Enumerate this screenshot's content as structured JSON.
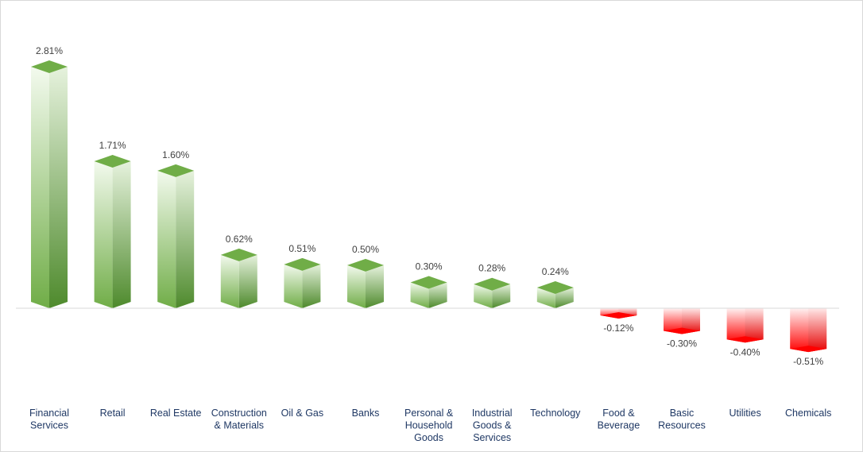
{
  "chart_data": {
    "type": "bar",
    "categories": [
      [
        "Financial",
        "Services"
      ],
      [
        "Retail"
      ],
      [
        "Real Estate"
      ],
      [
        "Construction",
        "& Materials"
      ],
      [
        "Oil & Gas"
      ],
      [
        "Banks"
      ],
      [
        "Personal &",
        "Household",
        "Goods"
      ],
      [
        "Industrial",
        "Goods &",
        "Services"
      ],
      [
        "Technology"
      ],
      [
        "Food &",
        "Beverage"
      ],
      [
        "Basic",
        "Resources"
      ],
      [
        "Utilities"
      ],
      [
        "Chemicals"
      ]
    ],
    "values": [
      2.81,
      1.71,
      1.6,
      0.62,
      0.51,
      0.5,
      0.3,
      0.28,
      0.24,
      -0.12,
      -0.3,
      -0.4,
      -0.51
    ],
    "value_labels": [
      "2.81%",
      "1.71%",
      "1.60%",
      "0.62%",
      "0.51%",
      "0.50%",
      "0.30%",
      "0.28%",
      "0.24%",
      "-0.12%",
      "-0.30%",
      "-0.40%",
      "-0.51%"
    ],
    "title": "",
    "xlabel": "",
    "ylabel": "",
    "ylim": [
      -0.6,
      2.9
    ],
    "grid": false,
    "legend": "none",
    "colors": {
      "positive": "#70ad47",
      "positive_dark": "#4e8a2c",
      "positive_light": "#f3faee",
      "negative": "#ff0000",
      "negative_dark": "#d00000",
      "negative_light": "#fff2f2",
      "axis": "#d9d9d9",
      "category_text": "#1f3864",
      "value_text": "#404040"
    }
  }
}
